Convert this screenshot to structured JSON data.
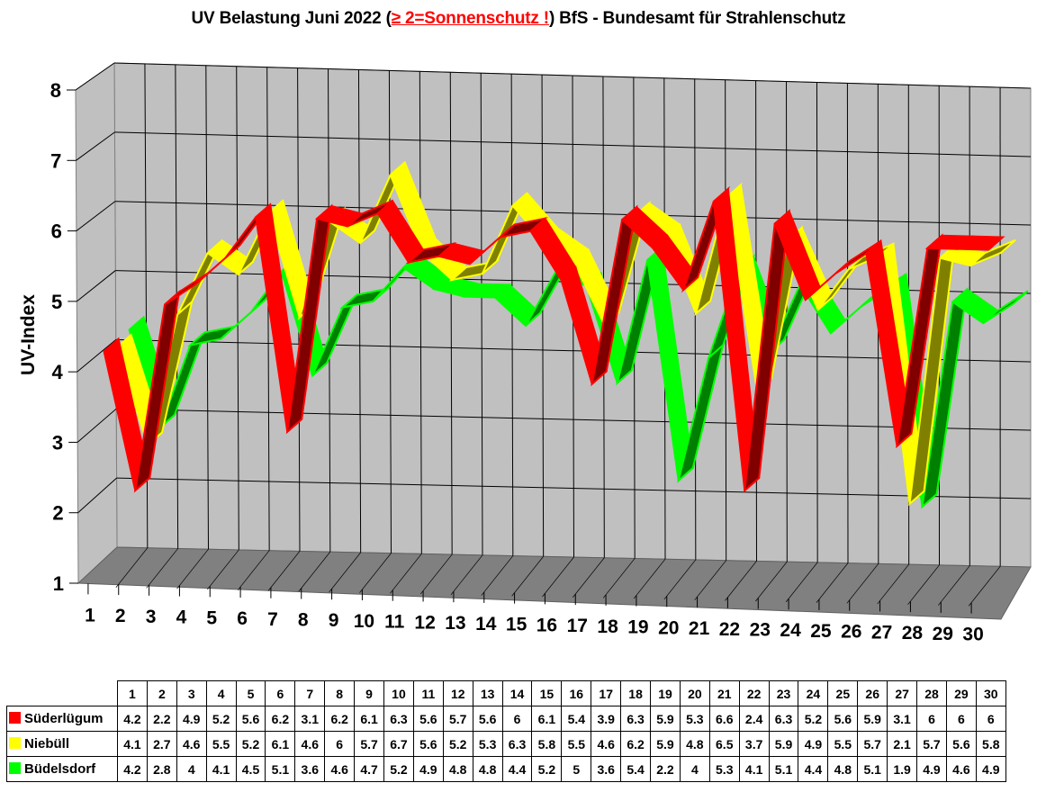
{
  "title": {
    "prefix": "UV Belastung Juni 2022 (",
    "warning": "≥ 2=Sonnenschutz !",
    "suffix": ") BfS - Bundesamt für Strahlenschutz",
    "warning_color": "#ff0000"
  },
  "chart_data": {
    "type": "line",
    "title": "UV Belastung Juni 2022 (≥ 2=Sonnenschutz !) BfS - Bundesamt für Strahlenschutz",
    "xlabel": "",
    "ylabel": "UV-Index",
    "ylim": [
      1,
      8
    ],
    "yticks": [
      1,
      2,
      3,
      4,
      5,
      6,
      7,
      8
    ],
    "grid": true,
    "style": "3d-ribbon",
    "legend_position": "data-table-below",
    "x": [
      1,
      2,
      3,
      4,
      5,
      6,
      7,
      8,
      9,
      10,
      11,
      12,
      13,
      14,
      15,
      16,
      17,
      18,
      19,
      20,
      21,
      22,
      23,
      24,
      25,
      26,
      27,
      28,
      29,
      30
    ],
    "series": [
      {
        "name": "Süderlügum",
        "color": "#ff0000",
        "dark": "#800000",
        "values": [
          4.2,
          2.2,
          4.9,
          5.2,
          5.6,
          6.2,
          3.1,
          6.2,
          6.1,
          6.3,
          5.6,
          5.7,
          5.6,
          6,
          6.1,
          5.4,
          3.9,
          6.3,
          5.9,
          5.3,
          6.6,
          2.4,
          6.3,
          5.2,
          5.6,
          5.9,
          3.1,
          6,
          6,
          6
        ]
      },
      {
        "name": "Niebüll",
        "color": "#ffff00",
        "dark": "#808000",
        "values": [
          4.1,
          2.7,
          4.6,
          5.5,
          5.2,
          6.1,
          4.6,
          6,
          5.7,
          6.7,
          5.6,
          5.2,
          5.3,
          6.3,
          5.8,
          5.5,
          4.6,
          6.2,
          5.9,
          4.8,
          6.5,
          3.7,
          5.9,
          4.9,
          5.5,
          5.7,
          2.1,
          5.7,
          5.6,
          5.8
        ]
      },
      {
        "name": "Büdelsdorf",
        "color": "#00ff00",
        "dark": "#008000",
        "values": [
          4.2,
          2.8,
          4,
          4.1,
          4.5,
          5.1,
          3.6,
          4.6,
          4.7,
          5.2,
          4.9,
          4.8,
          4.8,
          4.4,
          5.2,
          5,
          3.6,
          5.4,
          2.2,
          4,
          5.3,
          4.1,
          5.1,
          4.4,
          4.8,
          5.1,
          1.9,
          4.9,
          4.6,
          4.9
        ]
      }
    ]
  },
  "table": {
    "columns": [
      "1",
      "2",
      "3",
      "4",
      "5",
      "6",
      "7",
      "8",
      "9",
      "10",
      "11",
      "12",
      "13",
      "14",
      "15",
      "16",
      "17",
      "18",
      "19",
      "20",
      "21",
      "22",
      "23",
      "24",
      "25",
      "26",
      "27",
      "28",
      "29",
      "30"
    ]
  }
}
